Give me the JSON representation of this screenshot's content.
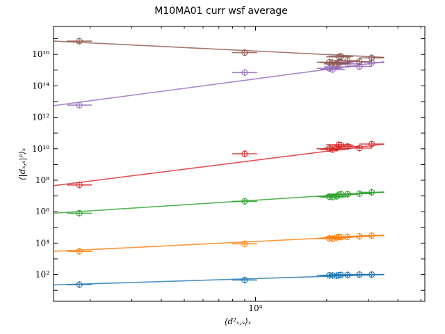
{
  "chart_data": {
    "type": "scatter",
    "title": "M10MA01 curr wsf average",
    "xlabel": "⟨d²ₓ,ₛ⟩ₓ",
    "ylabel": "⟨|dₓ,ₛ|ᵖ⟩ₓ",
    "x_scale": "log",
    "y_scale": "log",
    "xlim": [
      1400,
      52000
    ],
    "ylim": [
      2.0,
      6e+17
    ],
    "x_tick_labels": [
      {
        "value": 10000,
        "label": "10⁴"
      }
    ],
    "y_tick_labels": [
      {
        "value": 100,
        "label": "10²"
      },
      {
        "value": 10000,
        "label": "10⁴"
      },
      {
        "value": 1000000,
        "label": "10⁶"
      },
      {
        "value": 100000000,
        "label": "10⁸"
      },
      {
        "value": 10000000000,
        "label": "10¹⁰"
      },
      {
        "value": 1000000000000,
        "label": "10¹²"
      },
      {
        "value": 100000000000000,
        "label": "10¹⁴"
      },
      {
        "value": 10000000000000000,
        "label": "10¹⁶"
      }
    ],
    "grid": false,
    "x": [
      1800,
      9000,
      20500,
      21200,
      22000,
      22500,
      23000,
      24500,
      27500,
      31000
    ],
    "series": [
      {
        "color": "#1f77b4",
        "values": [
          23,
          45,
          90,
          88,
          85,
          90,
          95,
          95,
          100,
          100
        ]
      },
      {
        "color": "#ff7f0e",
        "values": [
          3000,
          9000,
          20000,
          19000,
          23000,
          25000,
          24000,
          25000,
          27000,
          30000
        ]
      },
      {
        "color": "#2ca02c",
        "values": [
          800000,
          4500000,
          9000000,
          8500000,
          9500000,
          12000000,
          13000000,
          13000000,
          14000000,
          17000000
        ]
      },
      {
        "color": "#d62728",
        "values": [
          50000000,
          4800000000,
          10000000000,
          9000000000,
          11000000000,
          18000000000,
          17000000000,
          14000000000,
          11000000000,
          20000000000
        ]
      },
      {
        "color": "#9467bd",
        "values": [
          6000000000000,
          700000000000000,
          1300000000000000,
          1100000000000000,
          1600000000000000,
          3000000000000000,
          3200000000000000,
          2500000000000000,
          1700000000000000,
          3000000000000000
        ]
      },
      {
        "color": "#8c564b",
        "values": [
          70000000000000000,
          13000000000000000,
          3200000000000000,
          3000000000000000,
          2500000000000000,
          7000000000000000,
          7500000000000000,
          4000000000000000,
          3500000000000000,
          6000000000000000
        ]
      }
    ],
    "fit_lines": [
      {
        "color": "#1f77b4",
        "x_range": [
          1400,
          35000
        ],
        "y_range": [
          22,
          100
        ]
      },
      {
        "color": "#ff7f0e",
        "x_range": [
          1400,
          35000
        ],
        "y_range": [
          3000,
          32000
        ]
      },
      {
        "color": "#2ca02c",
        "x_range": [
          1400,
          35000
        ],
        "y_range": [
          800000,
          18000000
        ]
      },
      {
        "color": "#d62728",
        "x_range": [
          1400,
          35000
        ],
        "y_range": [
          45000000,
          20000000000
        ]
      },
      {
        "color": "#9467bd",
        "x_range": [
          1400,
          35000
        ],
        "y_range": [
          5500000000000,
          3400000000000000
        ]
      },
      {
        "color": "#8c564b",
        "x_range": [
          1400,
          35000
        ],
        "y_range": [
          70000000000000000,
          6500000000000000
        ]
      }
    ]
  }
}
